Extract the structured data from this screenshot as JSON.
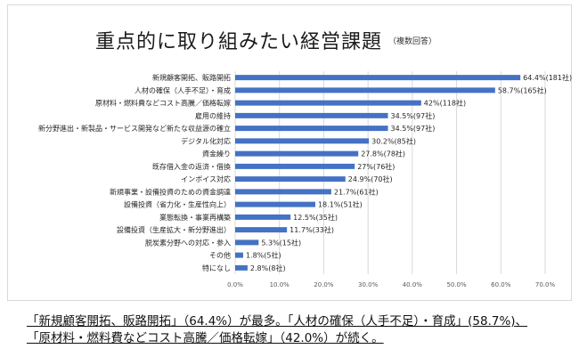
{
  "chart_data": {
    "type": "bar",
    "orientation": "horizontal",
    "title": "重点的に取り組みたい経営課題",
    "subtitle": "（複数回答）",
    "categories": [
      "新規顧客開拓、販路開拓",
      "人材の確保（人手不足）・育成",
      "原材料・燃料費などコスト高騰／価格転嫁",
      "雇用の維持",
      "新分野進出・新製品・サービス開発など新たな収益源の確立",
      "デジタル化対応",
      "資金繰り",
      "既存借入金の返済・借換",
      "インボイス対応",
      "新規事業・設備投資のための資金調達",
      "設備投資（省力化・生産性向上）",
      "業態転換・事業再構築",
      "設備投資（生産拡大・新分野進出）",
      "脱炭素分野への対応・参入",
      "その他",
      "特になし"
    ],
    "values": [
      64.4,
      58.7,
      42,
      34.5,
      34.5,
      30.2,
      27.8,
      27,
      24.9,
      21.7,
      18.1,
      12.5,
      11.7,
      5.3,
      1.8,
      2.8
    ],
    "data_labels": [
      "64.4%(181社)",
      "58.7%(165社)",
      "42%(118社)",
      "34.5%(97社)",
      "34.5%(97社)",
      "30.2%(85社)",
      "27.8%(78社)",
      "27%(76社)",
      "24.9%(70社)",
      "21.7%(61社)",
      "18.1%(51社)",
      "12.5%(35社)",
      "11.7%(33社)",
      "5.3%(15社)",
      "1.8%(5社)",
      "2.8%(8社)"
    ],
    "xlim": [
      0,
      70
    ],
    "xticks": [
      "0.0%",
      "10.0%",
      "20.0%",
      "30.0%",
      "40.0%",
      "50.0%",
      "60.0%",
      "70.0%"
    ],
    "grid": true,
    "bar_color": "#4472c4"
  },
  "summary": {
    "line1": "「新規顧客開拓、販路開拓」（64.4%）が最多。「人材の確保（人手不足）・育成」(58.7%)、",
    "line2": "「原材料・燃料費などコスト高騰／価格転嫁」（42.0%）が続く。"
  }
}
